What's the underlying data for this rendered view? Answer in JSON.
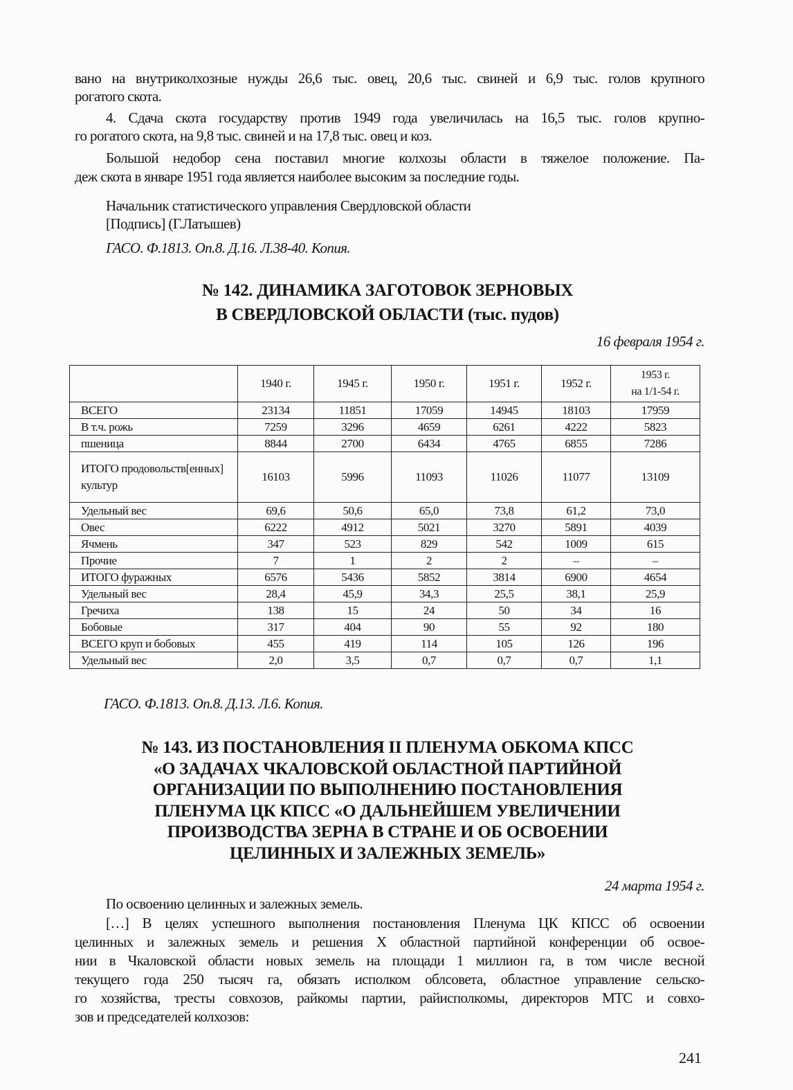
{
  "intro_lines": [
    "вано на внутриколхозные нужды 26,6 тыс. овец, 20,6 тыс. свиней и 6,9 тыс. голов крупного",
    "рогатого скота.",
    "4. Сдача скота государству против 1949 года увеличилась на 16,5 тыс. голов крупно-",
    "го рогатого скота, на 9,8 тыс. свиней и на 17,8 тыс. овец и коз.",
    "Большой недобор сена поставил многие колхозы области в тяжелое положение. Па-",
    "деж скота в январе 1951 года является наиболее высоким за последние годы."
  ],
  "signature": {
    "position": "Начальник статистического управления Свердловской области",
    "name": "[Подпись] (Г.Латышев)"
  },
  "source_1": "ГАСО. Ф.1813. Оп.8. Д.16. Л.38-40. Копия.",
  "doc_142": {
    "title_lines": [
      "№ 142. ДИНАМИКА ЗАГОТОВОК ЗЕРНОВЫХ",
      "В СВЕРДЛОВСКОЙ ОБЛАСТИ (тыс. пудов)"
    ],
    "date": "16 февраля 1954 г.",
    "table": {
      "headers": [
        "",
        "1940 г.",
        "1945 г.",
        "1950 г.",
        "1951 г.",
        "1952 г.",
        "1953 г.\nна 1/1-54 г."
      ],
      "rows": [
        [
          "ВСЕГО",
          "23134",
          "11851",
          "17059",
          "14945",
          "18103",
          "17959"
        ],
        [
          "В т.ч. рожь",
          "7259",
          "3296",
          "4659",
          "6261",
          "4222",
          "5823"
        ],
        [
          "пшеница",
          "8844",
          "2700",
          "6434",
          "4765",
          "6855",
          "7286"
        ],
        [
          "ИТОГО продовольств[енных] культур",
          "16103",
          "5996",
          "11093",
          "11026",
          "11077",
          "13109"
        ],
        [
          "Удельный вес",
          "69,6",
          "50,6",
          "65,0",
          "73,8",
          "61,2",
          "73,0"
        ],
        [
          "Овес",
          "6222",
          "4912",
          "5021",
          "3270",
          "5891",
          "4039"
        ],
        [
          "Ячмень",
          "347",
          "523",
          "829",
          "542",
          "1009",
          "615"
        ],
        [
          "Прочие",
          "7",
          "1",
          "2",
          "2",
          "–",
          "–"
        ],
        [
          "ИТОГО фуражных",
          "6576",
          "5436",
          "5852",
          "3814",
          "6900",
          "4654"
        ],
        [
          "Удельный вес",
          "28,4",
          "45,9",
          "34,3",
          "25,5",
          "38,1",
          "25,9"
        ],
        [
          "Гречиха",
          "138",
          "15",
          "24",
          "50",
          "34",
          "16"
        ],
        [
          "Бобовые",
          "317",
          "404",
          "90",
          "55",
          "92",
          "180"
        ],
        [
          "ВСЕГО круп и бобовых",
          "455",
          "419",
          "114",
          "105",
          "126",
          "196"
        ],
        [
          "Удельный вес",
          "2,0",
          "3,5",
          "0,7",
          "0,7",
          "0,7",
          "1,1"
        ]
      ]
    },
    "source": "ГАСО. Ф.1813. Оп.8. Д.13. Л.6. Копия."
  },
  "doc_143": {
    "title_lines": [
      "№ 143. ИЗ ПОСТАНОВЛЕНИЯ II ПЛЕНУМА ОБКОМА КПСС",
      "«О ЗАДАЧАХ ЧКАЛОВСКОЙ ОБЛАСТНОЙ ПАРТИЙНОЙ",
      "ОРГАНИЗАЦИИ ПО ВЫПОЛНЕНИЮ ПОСТАНОВЛЕНИЯ",
      "ПЛЕНУМА ЦК КПСС «О ДАЛЬНЕЙШЕМ УВЕЛИЧЕНИИ",
      "ПРОИЗВОДСТВА ЗЕРНА В СТРАНЕ И ОБ ОСВОЕНИИ",
      "ЦЕЛИННЫХ И ЗАЛЕЖНЫХ ЗЕМЕЛЬ»"
    ],
    "date": "24 марта 1954 г.",
    "body_lines": [
      "По освоению целинных и залежных земель.",
      "[…] В целях успешного выполнения постановления Пленума ЦК КПСС об освоении",
      "целинных и залежных земель и решения X областной партийной конференции об освое-",
      "нии в Чкаловской области новых земель на площади 1 миллион га, в том числе весной",
      "текущего года 250 тысяч га, обязать исполком облсовета, областное управление сельско-",
      "го хозяйства, тресты совхозов, райкомы партии, райисполкомы, директоров МТС и совхо-",
      "зов и председателей колхозов:"
    ]
  },
  "page_number": "241"
}
